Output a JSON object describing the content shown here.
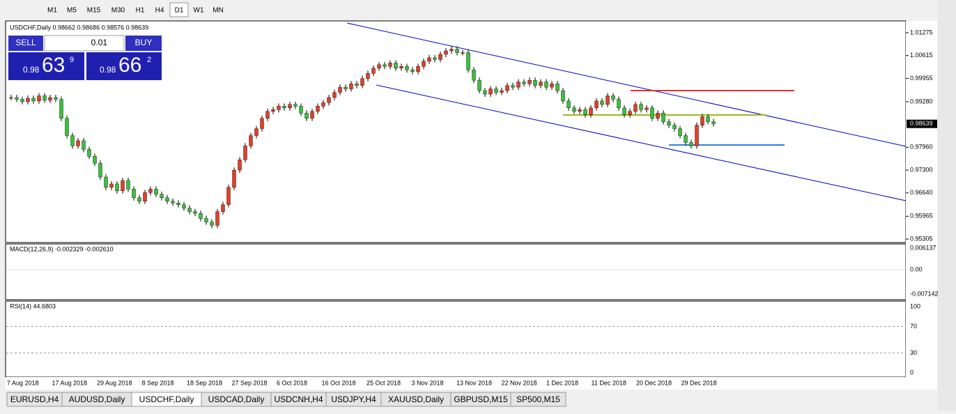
{
  "toolbar": {
    "timeframes": [
      "M1",
      "M5",
      "M15",
      "M30",
      "H1",
      "H4",
      "D1",
      "W1",
      "MN"
    ],
    "active": 6
  },
  "chart": {
    "header": "USDCHF,Daily 0.98662 0.98686 0.98576 0.98639",
    "trade_panel": {
      "sell": "SELL",
      "lot": "0.01",
      "buy": "BUY",
      "sell_big": "0.98",
      "sell_main": "63",
      "sell_sup": "9",
      "buy_big": "0.98",
      "buy_main": "66",
      "buy_sup": "2"
    },
    "ylim": [
      0.95265,
      1.01557
    ],
    "yticks": [
      1.01275,
      1.00615,
      0.99955,
      {
        "value": 0.9928,
        "label": "0.99280"
      },
      {
        "value": 0.9796,
        "label": "0.97960"
      },
      {
        "value": 0.973,
        "label": "0.97300"
      },
      {
        "value": 0.9664,
        "label": "0.96640"
      },
      0.95965,
      0.95305
    ],
    "current_price": 0.98639,
    "closes": [
      0.994,
      0.9935,
      0.9928,
      0.9938,
      0.993,
      0.9945,
      0.9932,
      0.994,
      0.9935,
      0.988,
      0.983,
      0.98,
      0.9815,
      0.979,
      0.977,
      0.975,
      0.971,
      0.968,
      0.969,
      0.967,
      0.97,
      0.9675,
      0.965,
      0.964,
      0.9665,
      0.9675,
      0.966,
      0.965,
      0.964,
      0.9635,
      0.963,
      0.962,
      0.961,
      0.9605,
      0.959,
      0.958,
      0.957,
      0.961,
      0.963,
      0.968,
      0.973,
      0.976,
      0.98,
      0.983,
      0.985,
      0.988,
      0.99,
      0.9905,
      0.9915,
      0.991,
      0.992,
      0.9915,
      0.9895,
      0.988,
      0.99,
      0.9915,
      0.9925,
      0.994,
      0.9955,
      0.997,
      0.9965,
      0.998,
      0.9975,
      0.9995,
      1.001,
      1.0025,
      1.0035,
      1.003,
      1.004,
      1.0025,
      1.003,
      1.002,
      1.0015,
      1.003,
      1.0045,
      1.0055,
      1.005,
      1.0065,
      1.0075,
      1.008,
      1.007,
      1.007,
      1.002,
      0.999,
      0.996,
      0.995,
      0.9965,
      0.9955,
      0.996,
      0.9975,
      0.997,
      0.9985,
      0.998,
      0.999,
      0.9975,
      0.9985,
      0.997,
      0.998,
      0.996,
      0.993,
      0.991,
      0.99,
      0.9905,
      0.989,
      0.991,
      0.993,
      0.992,
      0.9945,
      0.9935,
      0.991,
      0.989,
      0.99,
      0.992,
      0.9905,
      0.991,
      0.988,
      0.9895,
      0.987,
      0.986,
      0.985,
      0.983,
      0.981,
      0.98,
      0.986,
      0.9885,
      0.987,
      0.9864
    ],
    "dates": [
      "7 Aug 2018",
      "17 Aug 2018",
      "29 Aug 2018",
      "8 Sep 2018",
      "18 Sep 2018",
      "27 Sep 2018",
      "6 Oct 2018",
      "16 Oct 2018",
      "25 Oct 2018",
      "3 Nov 2018",
      "13 Nov 2018",
      "22 Nov 2018",
      "1 Dec 2018",
      "11 Dec 2018",
      "20 Dec 2018",
      "29 Dec 2018"
    ]
  },
  "macd": {
    "label": "MACD(12,26,9) -0.002329 -0.002610",
    "ticks": [
      "0.006137",
      "0.00",
      "-0.007142"
    ]
  },
  "rsi": {
    "label": "RSI(14) 44.6803",
    "ylim": [
      0,
      100
    ],
    "yticks": [
      100,
      70,
      30,
      0
    ]
  },
  "tabs": {
    "items": [
      "EURUSD,H4",
      "AUDUSD,Daily",
      "USDCHF,Daily",
      "USDCAD,Daily",
      "USDCNH,H4",
      "USDJPY,H4",
      "XAUUSD,Daily",
      "GBPUSD,M15",
      "SP500,M15"
    ],
    "active": 2
  }
}
